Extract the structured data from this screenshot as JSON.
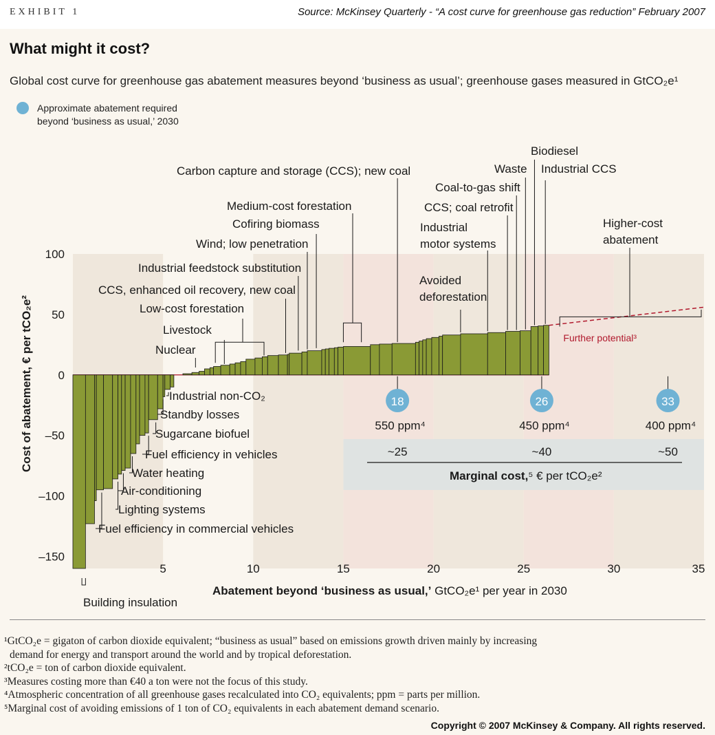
{
  "header": {
    "exhibit": "EXHIBIT 1",
    "source": "Source: McKinsey Quarterly - “A cost curve for greenhouse gas reduction” February 2007"
  },
  "title": "What might it cost?",
  "subtitle": "Global cost curve for greenhouse gas abatement measures beyond ‘business as usual’; greenhouse gases measured in GtCO₂e¹",
  "legend": {
    "color": "#6fb2d4",
    "line1": "Approximate abatement required",
    "line2": "beyond ‘business as usual,’ 2030"
  },
  "chart_data": {
    "type": "bar",
    "subtype": "marginal-cost-curve",
    "bar_color": "#8a9a35",
    "xlabel_bold": "Abatement beyond ‘business as usual,’",
    "xlabel_rest": " GtCO₂e¹ per year in 2030",
    "ylabel": "Cost of abatement, € per tCO₂e²",
    "xlim": [
      0,
      35
    ],
    "ylim": [
      -160,
      100
    ],
    "x_ticks": [
      5,
      10,
      15,
      20,
      25,
      30,
      35
    ],
    "y_ticks": [
      100,
      50,
      0,
      -50,
      -100,
      -150
    ],
    "bars": [
      {
        "x0": 0.0,
        "x1": 0.7,
        "y": -160
      },
      {
        "x0": 0.7,
        "x1": 1.2,
        "y": -123
      },
      {
        "x0": 1.2,
        "x1": 1.3,
        "y": -104
      },
      {
        "x0": 1.3,
        "x1": 1.7,
        "y": -95
      },
      {
        "x0": 1.7,
        "x1": 2.2,
        "y": -94
      },
      {
        "x0": 2.2,
        "x1": 2.5,
        "y": -86
      },
      {
        "x0": 2.5,
        "x1": 2.7,
        "y": -82
      },
      {
        "x0": 2.7,
        "x1": 2.9,
        "y": -79
      },
      {
        "x0": 2.9,
        "x1": 3.2,
        "y": -77
      },
      {
        "x0": 3.2,
        "x1": 3.5,
        "y": -65
      },
      {
        "x0": 3.5,
        "x1": 3.7,
        "y": -57
      },
      {
        "x0": 3.7,
        "x1": 4.0,
        "y": -50
      },
      {
        "x0": 4.0,
        "x1": 4.2,
        "y": -48
      },
      {
        "x0": 4.2,
        "x1": 4.7,
        "y": -37
      },
      {
        "x0": 4.7,
        "x1": 5.0,
        "y": -28
      },
      {
        "x0": 5.0,
        "x1": 5.1,
        "y": -18
      },
      {
        "x0": 5.1,
        "x1": 5.4,
        "y": -12
      },
      {
        "x0": 5.4,
        "x1": 5.6,
        "y": -10
      },
      {
        "x0": 6.1,
        "x1": 6.6,
        "y": 1
      },
      {
        "x0": 6.6,
        "x1": 7.0,
        "y": 2
      },
      {
        "x0": 7.0,
        "x1": 7.3,
        "y": 3
      },
      {
        "x0": 7.3,
        "x1": 7.6,
        "y": 5
      },
      {
        "x0": 7.6,
        "x1": 7.8,
        "y": 6
      },
      {
        "x0": 7.8,
        "x1": 8.2,
        "y": 7
      },
      {
        "x0": 8.2,
        "x1": 8.7,
        "y": 8
      },
      {
        "x0": 8.7,
        "x1": 9.0,
        "y": 9
      },
      {
        "x0": 9.0,
        "x1": 9.3,
        "y": 10
      },
      {
        "x0": 9.3,
        "x1": 9.6,
        "y": 11
      },
      {
        "x0": 9.6,
        "x1": 10.1,
        "y": 13
      },
      {
        "x0": 10.1,
        "x1": 10.5,
        "y": 14
      },
      {
        "x0": 10.5,
        "x1": 10.8,
        "y": 15
      },
      {
        "x0": 10.8,
        "x1": 11.4,
        "y": 16
      },
      {
        "x0": 11.4,
        "x1": 11.9,
        "y": 16.5
      },
      {
        "x0": 11.9,
        "x1": 12.0,
        "y": 17
      },
      {
        "x0": 12.0,
        "x1": 12.7,
        "y": 18
      },
      {
        "x0": 12.7,
        "x1": 13.0,
        "y": 19
      },
      {
        "x0": 13.0,
        "x1": 13.8,
        "y": 20
      },
      {
        "x0": 13.8,
        "x1": 14.0,
        "y": 21
      },
      {
        "x0": 14.0,
        "x1": 14.2,
        "y": 21.5
      },
      {
        "x0": 14.2,
        "x1": 14.5,
        "y": 22
      },
      {
        "x0": 14.5,
        "x1": 14.7,
        "y": 22.5
      },
      {
        "x0": 14.7,
        "x1": 15.0,
        "y": 23
      },
      {
        "x0": 15.0,
        "x1": 16.5,
        "y": 23.5
      },
      {
        "x0": 16.5,
        "x1": 17.0,
        "y": 25
      },
      {
        "x0": 17.0,
        "x1": 17.7,
        "y": 25.5
      },
      {
        "x0": 17.7,
        "x1": 19.0,
        "y": 26
      },
      {
        "x0": 19.0,
        "x1": 19.2,
        "y": 27
      },
      {
        "x0": 19.2,
        "x1": 19.4,
        "y": 28
      },
      {
        "x0": 19.4,
        "x1": 19.6,
        "y": 29
      },
      {
        "x0": 19.6,
        "x1": 19.9,
        "y": 30
      },
      {
        "x0": 19.9,
        "x1": 20.3,
        "y": 31
      },
      {
        "x0": 20.3,
        "x1": 20.5,
        "y": 32
      },
      {
        "x0": 20.5,
        "x1": 21.5,
        "y": 33
      },
      {
        "x0": 21.5,
        "x1": 23.0,
        "y": 34
      },
      {
        "x0": 23.0,
        "x1": 24.0,
        "y": 35
      },
      {
        "x0": 24.0,
        "x1": 24.8,
        "y": 36
      },
      {
        "x0": 24.8,
        "x1": 25.4,
        "y": 36.5
      },
      {
        "x0": 25.4,
        "x1": 25.8,
        "y": 40
      },
      {
        "x0": 25.8,
        "x1": 26.1,
        "y": 40.5
      },
      {
        "x0": 26.1,
        "x1": 26.4,
        "y": 41
      }
    ],
    "shaded_bands": [
      [
        0,
        5
      ],
      [
        10,
        15
      ],
      [
        20,
        25
      ],
      [
        30,
        35
      ]
    ],
    "scenario_bands": [
      [
        15,
        20
      ],
      [
        25,
        30
      ]
    ],
    "further_potential": {
      "x0": 26.4,
      "y0": 41,
      "x1": 35,
      "y1": 56,
      "label": "Further potential³",
      "color": "#b0182c"
    },
    "required": [
      {
        "x": 18,
        "label": "18",
        "ppm": "550 ppm⁴",
        "marginal_cost": "~25"
      },
      {
        "x": 26,
        "label": "26",
        "ppm": "450 ppm⁴",
        "marginal_cost": "~40"
      },
      {
        "x": 33,
        "label": "33",
        "ppm": "400 ppm⁴",
        "marginal_cost": "~50"
      }
    ],
    "marginal_cost_label_bold": "Marginal cost,",
    "marginal_cost_label_rest": "⁵ € per tCO₂e²",
    "annotations_upper": [
      {
        "text": "Nuclear",
        "x": 6.8,
        "y": 5
      },
      {
        "text": "Livestock",
        "x": 8.0,
        "y": 10
      },
      {
        "text": "Low-cost forestation",
        "x": 9.5,
        "y": 12
      },
      {
        "text": "CCS, enhanced oil recovery, new coal",
        "x": 11.8,
        "y": 17
      },
      {
        "text": "Industrial feedstock substitution",
        "x": 12.5,
        "y": 19
      },
      {
        "text": "Wind; low penetration",
        "x": 13.0,
        "y": 20
      },
      {
        "text": "Cofiring biomass",
        "x": 13.5,
        "y": 21
      },
      {
        "text": "Medium-cost forestation",
        "x": 15.5,
        "y": 23.5
      },
      {
        "text": "Carbon capture and storage (CCS); new coal",
        "x": 18.0,
        "y": 26
      },
      {
        "text": "Avoided deforestation",
        "x": 21.5,
        "y": 34
      },
      {
        "text": "Industrial motor systems",
        "x": 23.0,
        "y": 35
      },
      {
        "text": "CCS; coal retrofit",
        "x": 24.1,
        "y": 36
      },
      {
        "text": "Coal-to-gas shift",
        "x": 24.6,
        "y": 36
      },
      {
        "text": "Waste",
        "x": 25.1,
        "y": 36.5
      },
      {
        "text": "Biodiesel",
        "x": 25.6,
        "y": 40
      },
      {
        "text": "Industrial CCS",
        "x": 26.2,
        "y": 41
      },
      {
        "text": "Higher-cost abatement",
        "x": 27.0,
        "y": 45
      }
    ],
    "annotations_lower": [
      {
        "text": "Industrial non-CO₂",
        "x": 5.3,
        "y": -12
      },
      {
        "text": "Standby losses",
        "x": 5.0,
        "y": -18
      },
      {
        "text": "Sugarcane biofuel",
        "x": 4.6,
        "y": -37
      },
      {
        "text": "Fuel efficiency in vehicles",
        "x": 4.2,
        "y": -48
      },
      {
        "text": "Water heating",
        "x": 3.3,
        "y": -65
      },
      {
        "text": "Air-conditioning",
        "x": 2.8,
        "y": -79
      },
      {
        "text": "Lighting systems",
        "x": 2.5,
        "y": -86
      },
      {
        "text": "Fuel efficiency in commercial vehicles",
        "x": 1.6,
        "y": -95
      },
      {
        "text": "Building insulation",
        "x": 0.6,
        "y": -160
      }
    ]
  },
  "footnotes": [
    "¹GtCO₂e = gigaton of carbon dioxide equivalent; “business as usual” based on emissions growth driven mainly by increasing",
    "  demand for energy and transport around the world and by tropical deforestation.",
    "²tCO₂e = ton of carbon dioxide equivalent.",
    "³Measures costing more than €40 a ton were not the focus of this study.",
    "⁴Atmospheric concentration of all greenhouse gases recalculated into CO₂ equivalents; ppm = parts per million.",
    "⁵Marginal cost of avoiding emissions of 1 ton of CO₂ equivalents in each abatement demand scenario."
  ],
  "copyright": "Copyright © 2007 McKinsey & Company. All rights reserved."
}
